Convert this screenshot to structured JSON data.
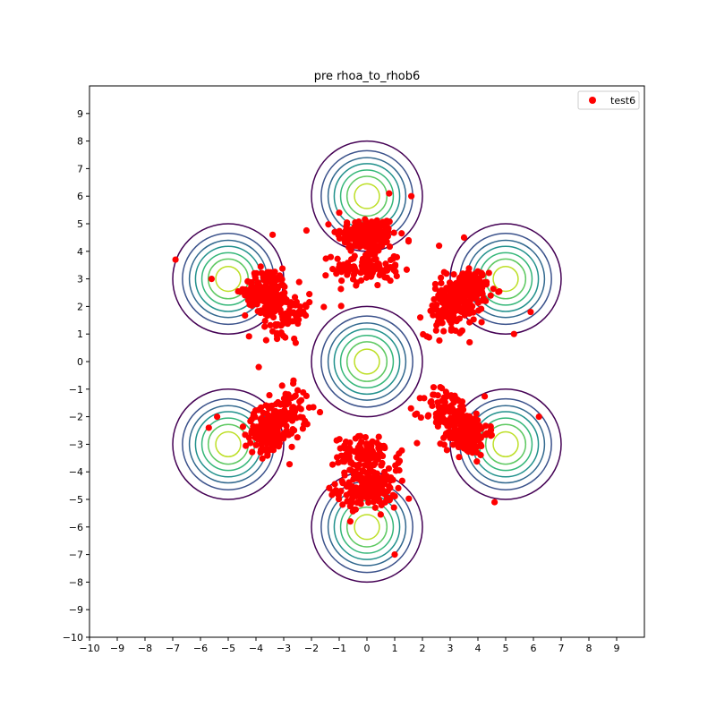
{
  "chart_data": {
    "type": "scatter",
    "title": "pre rhoa_to_rhob6",
    "xlabel": "",
    "ylabel": "",
    "xlim": [
      -10,
      10
    ],
    "ylim": [
      -10,
      10
    ],
    "x_ticks": [
      "−10",
      "−9",
      "−8",
      "−7",
      "−6",
      "−5",
      "−4",
      "−3",
      "−2",
      "−1",
      "0",
      "1",
      "2",
      "3",
      "4",
      "5",
      "6",
      "7",
      "8",
      "9"
    ],
    "y_ticks": [
      "−10",
      "−9",
      "−8",
      "−7",
      "−6",
      "−5",
      "−4",
      "−3",
      "−2",
      "−1",
      "0",
      "1",
      "2",
      "3",
      "4",
      "5",
      "6",
      "7",
      "8",
      "9"
    ],
    "grid": false,
    "legend": {
      "placement": "top-right",
      "entries": [
        {
          "label": "test6",
          "color": "#ff0000",
          "marker": "circle"
        }
      ]
    },
    "contours": {
      "centers": [
        [
          0,
          6
        ],
        [
          5,
          3
        ],
        [
          5,
          -3
        ],
        [
          0,
          -6
        ],
        [
          -5,
          -3
        ],
        [
          -5,
          3
        ],
        [
          0,
          0
        ]
      ],
      "radii": [
        2.0,
        1.65,
        1.4,
        1.18,
        0.95,
        0.72,
        0.45
      ],
      "colors": [
        "#440154",
        "#3b528b",
        "#31688e",
        "#21918c",
        "#35b779",
        "#5ec962",
        "#bddf26"
      ]
    },
    "series": [
      {
        "name": "test6",
        "color": "#ff0000",
        "clusters": [
          {
            "center": [
              0,
              4.6
            ],
            "spread": [
              0.9,
              0.55
            ],
            "count": 170
          },
          {
            "center": [
              0,
              3.4
            ],
            "spread": [
              1.0,
              0.55
            ],
            "count": 110
          },
          {
            "center": [
              0,
              -4.6
            ],
            "spread": [
              0.9,
              0.55
            ],
            "count": 170
          },
          {
            "center": [
              0,
              -3.4
            ],
            "spread": [
              1.0,
              0.55
            ],
            "count": 110
          },
          {
            "center": [
              3.6,
              2.6
            ],
            "spread": [
              0.65,
              0.65
            ],
            "count": 160
          },
          {
            "center": [
              2.9,
              1.8
            ],
            "spread": [
              0.7,
              0.7
            ],
            "count": 90
          },
          {
            "center": [
              3.6,
              -2.6
            ],
            "spread": [
              0.65,
              0.65
            ],
            "count": 160
          },
          {
            "center": [
              2.9,
              -1.8
            ],
            "spread": [
              0.7,
              0.7
            ],
            "count": 90
          },
          {
            "center": [
              -3.6,
              2.6
            ],
            "spread": [
              0.65,
              0.65
            ],
            "count": 160
          },
          {
            "center": [
              -2.9,
              1.8
            ],
            "spread": [
              0.7,
              0.7
            ],
            "count": 90
          },
          {
            "center": [
              -3.6,
              -2.6
            ],
            "spread": [
              0.65,
              0.65
            ],
            "count": 160
          },
          {
            "center": [
              -2.9,
              -1.8
            ],
            "spread": [
              0.7,
              0.7
            ],
            "count": 90
          }
        ],
        "outliers": [
          [
            -6.9,
            3.7
          ],
          [
            -5.6,
            3.0
          ],
          [
            -5.4,
            -2.0
          ],
          [
            -5.7,
            -2.4
          ],
          [
            6.2,
            -2.0
          ],
          [
            5.9,
            1.8
          ],
          [
            5.3,
            1.0
          ],
          [
            0.8,
            6.1
          ],
          [
            1.6,
            6.0
          ],
          [
            -1.0,
            5.4
          ],
          [
            1.5,
            4.4
          ],
          [
            -3.4,
            4.6
          ],
          [
            3.5,
            4.5
          ],
          [
            -0.6,
            -5.8
          ],
          [
            0.3,
            -5.3
          ],
          [
            1.0,
            -7.0
          ],
          [
            3.7,
            0.7
          ],
          [
            -3.9,
            -0.2
          ],
          [
            4.6,
            -5.1
          ],
          [
            2.6,
            4.2
          ]
        ]
      }
    ]
  }
}
